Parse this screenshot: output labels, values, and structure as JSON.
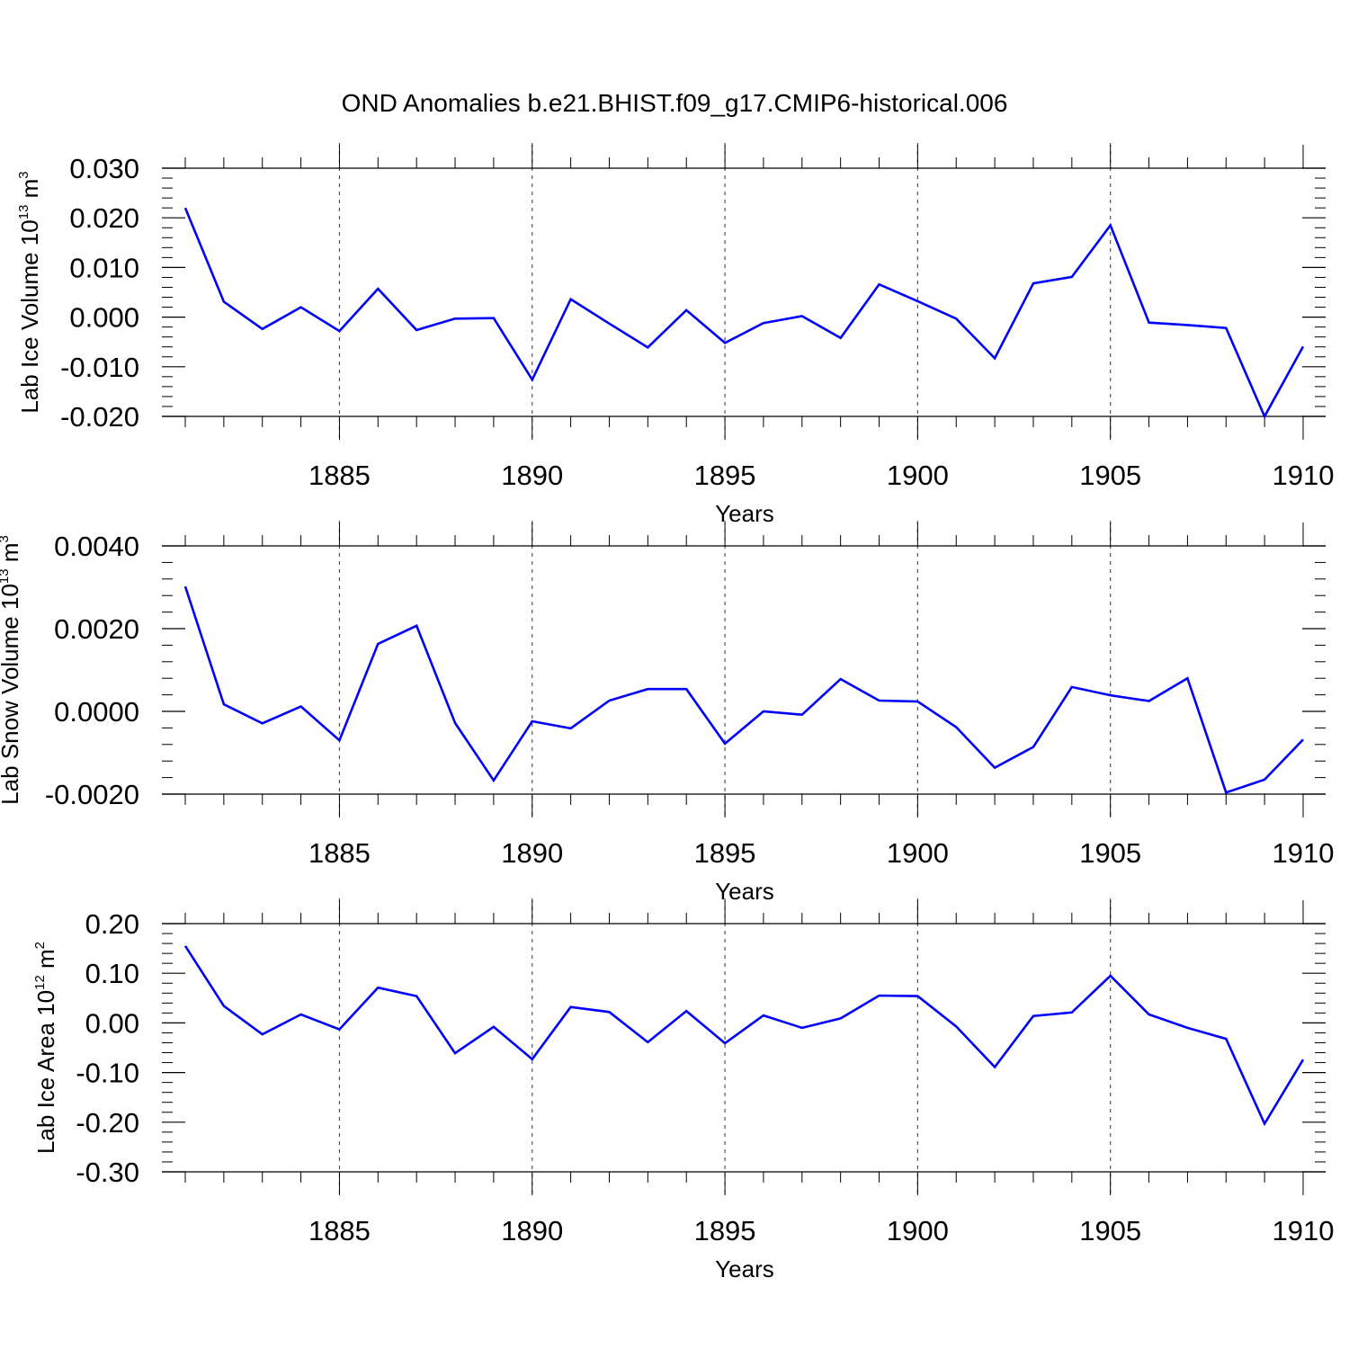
{
  "title": "OND Anomalies b.e21.BHIST.f09_g17.CMIP6-historical.006",
  "colors": {
    "series": "#0000ff",
    "axis": "#000000",
    "grid": "#555555"
  },
  "chart_data": [
    {
      "type": "line",
      "ylabel": {
        "text": "Lab Ice Volume 10",
        "exp": "13",
        "unit": " m",
        "unit_exp": "3"
      },
      "xlabel": "Years",
      "xlim": [
        1880.5,
        1910
      ],
      "ylim": [
        -0.02,
        0.03
      ],
      "yticks": [
        "-0.020",
        "-0.010",
        "0.000",
        "0.010",
        "0.020",
        "0.030"
      ],
      "yticks_values": [
        -0.02,
        -0.01,
        0.0,
        0.01,
        0.02,
        0.03
      ],
      "xticks": [
        1885,
        1890,
        1895,
        1900,
        1905,
        1910
      ],
      "grid_x": [
        1885,
        1890,
        1895,
        1900,
        1905
      ],
      "series": [
        {
          "x": [
            1881,
            1882,
            1883,
            1884,
            1885,
            1886,
            1887,
            1888,
            1889,
            1890,
            1891,
            1892,
            1893,
            1894,
            1895,
            1896,
            1897,
            1898,
            1899,
            1900,
            1901,
            1902,
            1903,
            1904,
            1905,
            1906,
            1907,
            1908,
            1909,
            1910
          ],
          "values": [
            0.022,
            0.0031,
            -0.0024,
            0.002,
            -0.0028,
            0.0057,
            -0.0026,
            -0.0003,
            -0.0002,
            -0.0126,
            0.0036,
            -0.0013,
            -0.0061,
            0.0014,
            -0.0052,
            -0.0012,
            0.0002,
            -0.0042,
            0.0066,
            0.0032,
            -0.0003,
            -0.0083,
            0.0068,
            0.0081,
            0.0185,
            -0.0011,
            -0.0016,
            -0.0022,
            -0.02,
            -0.0059
          ]
        }
      ]
    },
    {
      "type": "line",
      "ylabel": {
        "text": "Lab Snow Volume 10",
        "exp": "13",
        "unit": " m",
        "unit_exp": "3"
      },
      "xlabel": "Years",
      "xlim": [
        1880.5,
        1910
      ],
      "ylim": [
        -0.002,
        0.004
      ],
      "yticks": [
        "-0.0020",
        "0.0000",
        "0.0020",
        "0.0040"
      ],
      "yticks_values": [
        -0.002,
        0.0,
        0.002,
        0.004
      ],
      "xticks": [
        1885,
        1890,
        1895,
        1900,
        1905,
        1910
      ],
      "grid_x": [
        1885,
        1890,
        1895,
        1900,
        1905
      ],
      "series": [
        {
          "x": [
            1881,
            1882,
            1883,
            1884,
            1885,
            1886,
            1887,
            1888,
            1889,
            1890,
            1891,
            1892,
            1893,
            1894,
            1895,
            1896,
            1897,
            1898,
            1899,
            1900,
            1901,
            1902,
            1903,
            1904,
            1905,
            1906,
            1907,
            1908,
            1909,
            1910
          ],
          "values": [
            0.00302,
            0.00017,
            -0.00029,
            0.00012,
            -0.0007,
            0.00163,
            0.00207,
            -0.00028,
            -0.00167,
            -0.00024,
            -0.00041,
            0.00026,
            0.00054,
            0.00054,
            -0.00078,
            0.0,
            -8e-05,
            0.00078,
            0.00026,
            0.00024,
            -0.00038,
            -0.00136,
            -0.00086,
            0.00059,
            0.00039,
            0.00025,
            0.0008,
            -0.00196,
            -0.00165,
            -0.00068
          ]
        }
      ]
    },
    {
      "type": "line",
      "ylabel": {
        "text": "Lab Ice Area 10",
        "exp": "12",
        "unit": " m",
        "unit_exp": "2"
      },
      "xlabel": "Years",
      "xlim": [
        1880.5,
        1910
      ],
      "ylim": [
        -0.3,
        0.2
      ],
      "yticks": [
        "-0.30",
        "-0.20",
        "-0.10",
        "0.00",
        "0.10",
        "0.20"
      ],
      "yticks_values": [
        -0.3,
        -0.2,
        -0.1,
        0.0,
        0.1,
        0.2
      ],
      "xticks": [
        1885,
        1890,
        1895,
        1900,
        1905,
        1910
      ],
      "grid_x": [
        1885,
        1890,
        1895,
        1900,
        1905
      ],
      "series": [
        {
          "x": [
            1881,
            1882,
            1883,
            1884,
            1885,
            1886,
            1887,
            1888,
            1889,
            1890,
            1891,
            1892,
            1893,
            1894,
            1895,
            1896,
            1897,
            1898,
            1899,
            1900,
            1901,
            1902,
            1903,
            1904,
            1905,
            1906,
            1907,
            1908,
            1909,
            1910
          ],
          "values": [
            0.155,
            0.034,
            -0.023,
            0.017,
            -0.013,
            0.071,
            0.054,
            -0.061,
            -0.008,
            -0.073,
            0.032,
            0.022,
            -0.039,
            0.024,
            -0.041,
            0.015,
            -0.01,
            0.009,
            0.055,
            0.054,
            -0.007,
            -0.089,
            0.014,
            0.021,
            0.095,
            0.017,
            -0.01,
            -0.032,
            -0.203,
            -0.074
          ]
        }
      ]
    }
  ]
}
